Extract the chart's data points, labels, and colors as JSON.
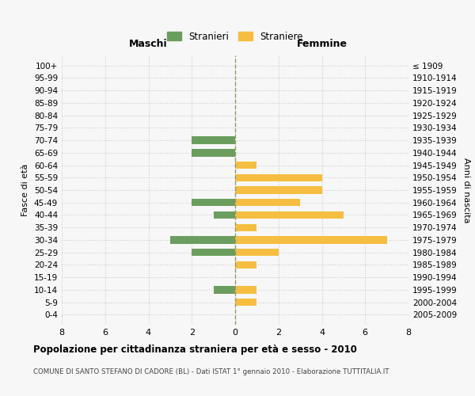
{
  "age_groups": [
    "100+",
    "95-99",
    "90-94",
    "85-89",
    "80-84",
    "75-79",
    "70-74",
    "65-69",
    "60-64",
    "55-59",
    "50-54",
    "45-49",
    "40-44",
    "35-39",
    "30-34",
    "25-29",
    "20-24",
    "15-19",
    "10-14",
    "5-9",
    "0-4"
  ],
  "birth_years": [
    "≤ 1909",
    "1910-1914",
    "1915-1919",
    "1920-1924",
    "1925-1929",
    "1930-1934",
    "1935-1939",
    "1940-1944",
    "1945-1949",
    "1950-1954",
    "1955-1959",
    "1960-1964",
    "1965-1969",
    "1970-1974",
    "1975-1979",
    "1980-1984",
    "1985-1989",
    "1990-1994",
    "1995-1999",
    "2000-2004",
    "2005-2009"
  ],
  "maschi": [
    0,
    0,
    0,
    0,
    0,
    0,
    2,
    2,
    0,
    0,
    0,
    2,
    1,
    0,
    3,
    2,
    0,
    0,
    1,
    0,
    0
  ],
  "femmine": [
    0,
    0,
    0,
    0,
    0,
    0,
    0,
    0,
    1,
    4,
    4,
    3,
    5,
    1,
    7,
    2,
    1,
    0,
    1,
    1,
    0
  ],
  "male_color": "#6b9e5e",
  "female_color": "#f5be41",
  "title": "Popolazione per cittadinanza straniera per età e sesso - 2010",
  "subtitle": "COMUNE DI SANTO STEFANO DI CADORE (BL) - Dati ISTAT 1° gennaio 2010 - Elaborazione TUTTITALIA.IT",
  "xlabel_left": "Maschi",
  "xlabel_right": "Femmine",
  "ylabel_left": "Fasce di età",
  "ylabel_right": "Anni di nascita",
  "legend_male": "Stranieri",
  "legend_female": "Straniere",
  "xlim": 8,
  "background_color": "#f7f7f7",
  "grid_color": "#cccccc"
}
